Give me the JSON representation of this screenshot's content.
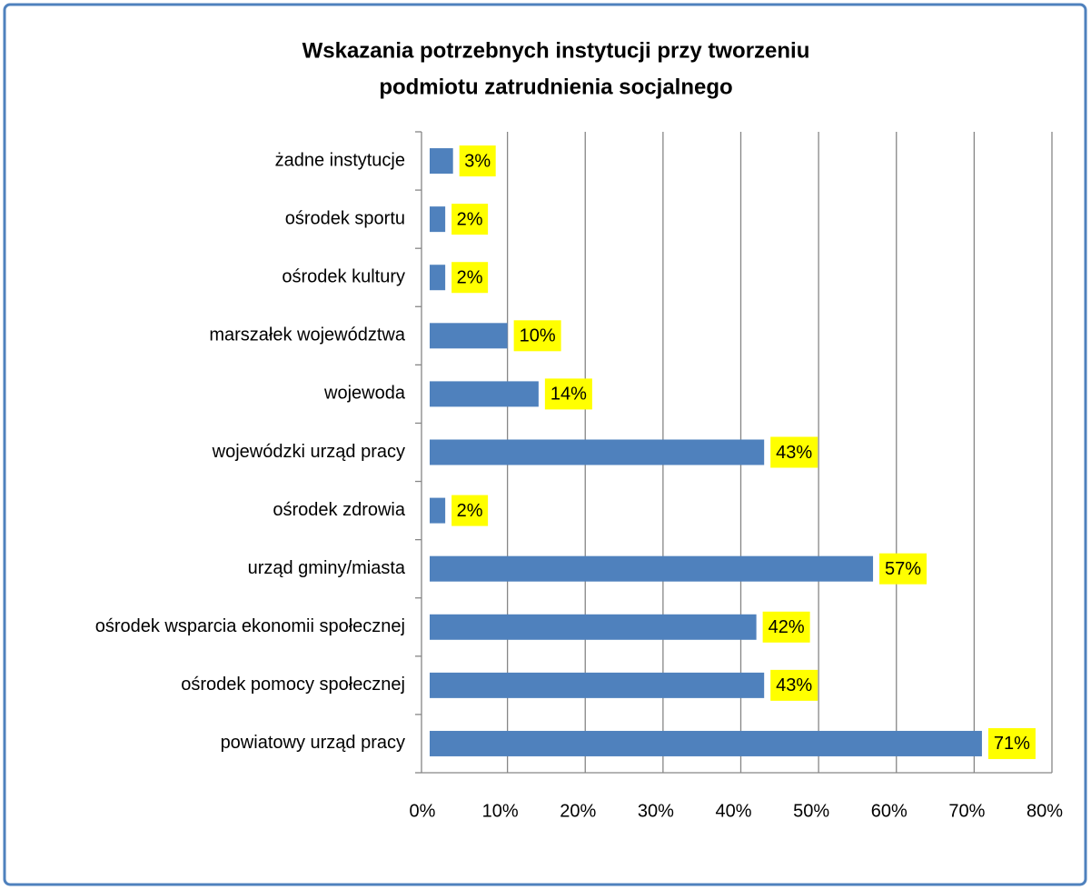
{
  "chart_data": {
    "type": "barh",
    "title": [
      "Wskazania potrzebnych instytucji przy tworzeniu",
      "podmiotu zatrudnienia socjalnego"
    ],
    "categories": [
      "żadne instytucje",
      "ośrodek sportu",
      "ośrodek kultury",
      "marszałek województwa",
      "wojewoda",
      "wojewódzki urząd pracy",
      "ośrodek zdrowia",
      "urząd gminy/miasta",
      "ośrodek wsparcia ekonomii społecznej",
      "ośrodek pomocy społecznej",
      "powiatowy urząd pracy"
    ],
    "values": [
      3,
      2,
      2,
      10,
      14,
      43,
      2,
      57,
      42,
      43,
      71
    ],
    "value_labels": [
      "3%",
      "2%",
      "2%",
      "10%",
      "14%",
      "43%",
      "2%",
      "57%",
      "42%",
      "43%",
      "71%"
    ],
    "color": "#4f81bd",
    "label_background": "#ffff00",
    "xlim": [
      0,
      80
    ],
    "xticks": [
      {
        "value": 0,
        "label": "0%"
      },
      {
        "value": 10,
        "label": "10%"
      },
      {
        "value": 20,
        "label": "20%"
      },
      {
        "value": 30,
        "label": "30%"
      },
      {
        "value": 40,
        "label": "40%"
      },
      {
        "value": 50,
        "label": "50%"
      },
      {
        "value": 60,
        "label": "60%"
      },
      {
        "value": 70,
        "label": "70%"
      },
      {
        "value": 80,
        "label": "80%"
      }
    ],
    "grid": true
  }
}
